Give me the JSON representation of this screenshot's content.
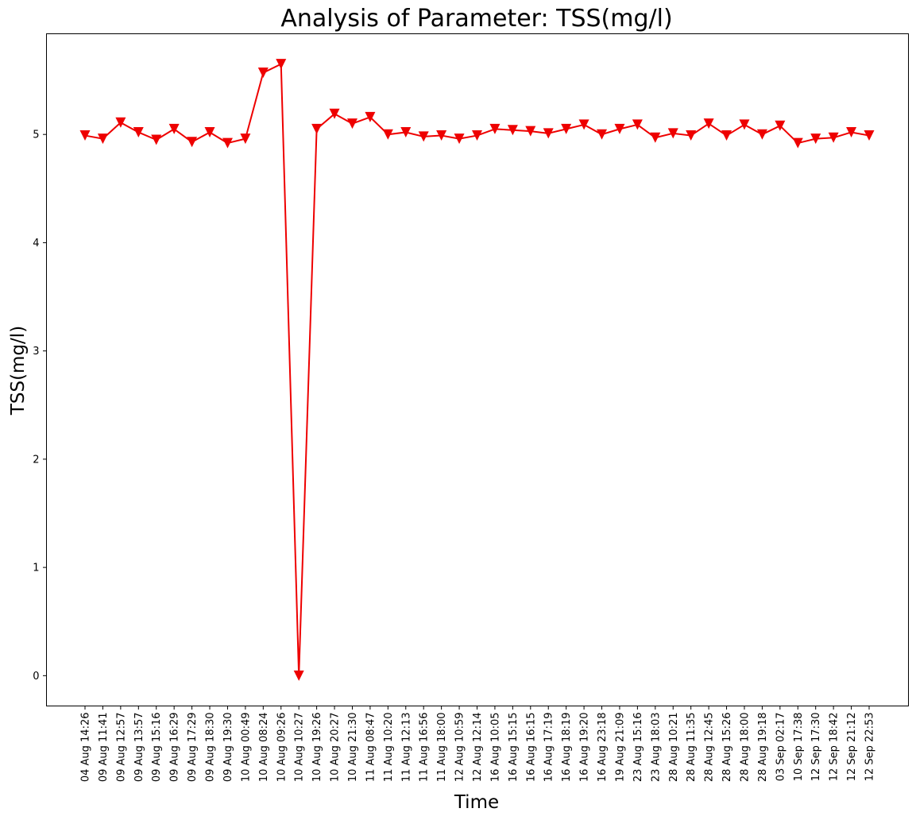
{
  "chart_data": {
    "type": "line",
    "title": "Analysis of Parameter: TSS(mg/l)",
    "xlabel": "Time",
    "ylabel": "TSS(mg/l)",
    "ylim": [
      -0.28,
      5.93
    ],
    "yticks": [
      0,
      1,
      2,
      3,
      4,
      5
    ],
    "grid": false,
    "legend": "none",
    "colors": {
      "series": "#ee0000"
    },
    "categories": [
      "04 Aug 14:26",
      "09 Aug 11:41",
      "09 Aug 12:57",
      "09 Aug 13:57",
      "09 Aug 15:16",
      "09 Aug 16:29",
      "09 Aug 17:29",
      "09 Aug 18:30",
      "09 Aug 19:30",
      "10 Aug 00:49",
      "10 Aug 08:24",
      "10 Aug 09:26",
      "10 Aug 10:27",
      "10 Aug 19:26",
      "10 Aug 20:27",
      "10 Aug 21:30",
      "11 Aug 08:47",
      "11 Aug 10:20",
      "11 Aug 12:13",
      "11 Aug 16:56",
      "11 Aug 18:00",
      "12 Aug 10:59",
      "12 Aug 12:14",
      "16 Aug 10:05",
      "16 Aug 15:15",
      "16 Aug 16:15",
      "16 Aug 17:19",
      "16 Aug 18:19",
      "16 Aug 19:20",
      "16 Aug 23:18",
      "19 Aug 21:09",
      "23 Aug 15:16",
      "23 Aug 18:03",
      "28 Aug 10:21",
      "28 Aug 11:35",
      "28 Aug 12:45",
      "28 Aug 15:26",
      "28 Aug 18:00",
      "28 Aug 19:18",
      "03 Sep 02:17",
      "10 Sep 17:38",
      "12 Sep 17:30",
      "12 Sep 18:42",
      "12 Sep 21:12",
      "12 Sep 22:53"
    ],
    "series": [
      {
        "marker": "triangle-down",
        "values": [
          4.99,
          4.96,
          5.11,
          5.02,
          4.95,
          5.05,
          4.93,
          5.02,
          4.92,
          4.96,
          5.57,
          5.65,
          0.0,
          5.05,
          5.19,
          5.1,
          5.16,
          5.0,
          5.02,
          4.98,
          4.99,
          4.96,
          4.99,
          5.05,
          5.04,
          5.03,
          5.01,
          5.05,
          5.09,
          5.0,
          5.05,
          5.09,
          4.97,
          5.01,
          4.99,
          5.1,
          4.99,
          5.09,
          5.0,
          5.08,
          4.92,
          4.96,
          4.97,
          5.02,
          4.99
        ]
      }
    ]
  }
}
